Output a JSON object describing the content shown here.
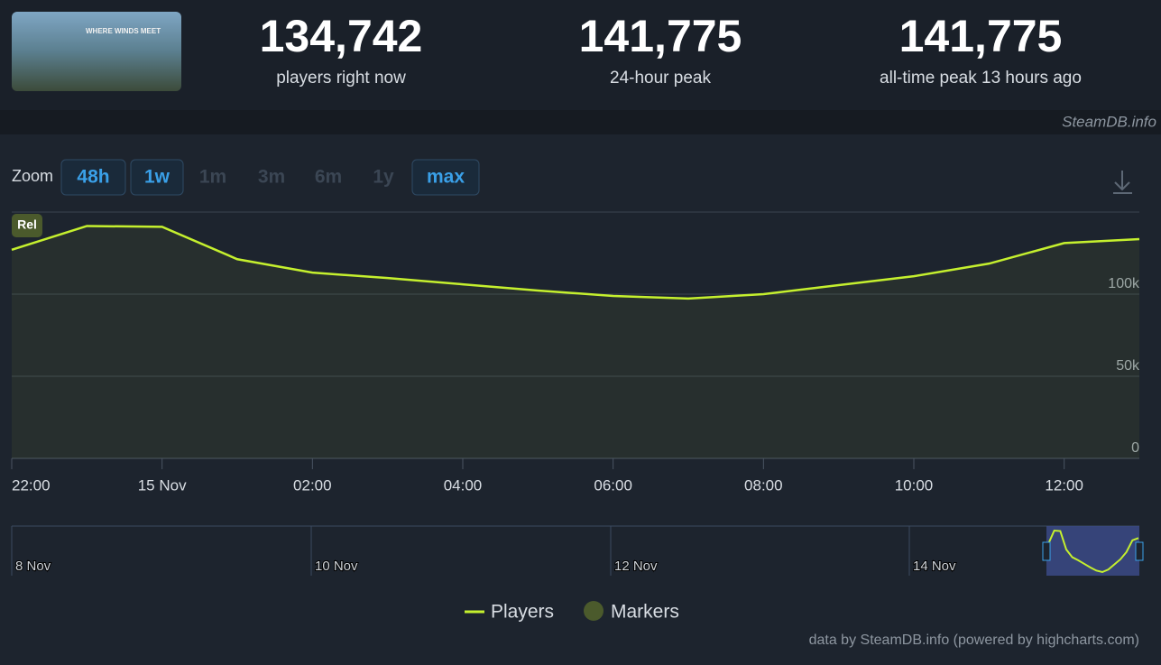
{
  "header": {
    "logo_text": "WHERE WINDS MEET",
    "stats": [
      {
        "value": "134,742",
        "label": "players right now"
      },
      {
        "value": "141,775",
        "label": "24-hour peak"
      },
      {
        "value": "141,775",
        "label": "all-time peak 13 hours ago"
      }
    ],
    "source": "SteamDB.info"
  },
  "zoom": {
    "label": "Zoom",
    "buttons": [
      "48h",
      "1w",
      "1m",
      "3m",
      "6m",
      "1y",
      "max"
    ],
    "active": [
      "48h",
      "1w",
      "max"
    ]
  },
  "chart_data": {
    "type": "line",
    "categories": [
      "22:00",
      null,
      "15 Nov",
      null,
      "02:00",
      null,
      "04:00",
      null,
      "06:00",
      null,
      "08:00",
      null,
      "10:00",
      null,
      "12:00",
      null
    ],
    "series": [
      {
        "name": "Players",
        "color": "#c5f02e",
        "values": [
          127000,
          141500,
          141000,
          121300,
          113100,
          109800,
          106000,
          102200,
          98900,
          97300,
          100000,
          105500,
          110900,
          118600,
          131100,
          133500
        ]
      }
    ],
    "markers": {
      "name": "Markers",
      "color": "#4b5a2c",
      "annotation": "Rel"
    },
    "ylim": [
      0,
      150000
    ],
    "yticks": [
      {
        "value": 0,
        "label": "0"
      },
      {
        "value": 50000,
        "label": "50k"
      },
      {
        "value": 100000,
        "label": "100k"
      }
    ],
    "grid": true,
    "navigator": {
      "labels": [
        "8 Nov",
        "10 Nov",
        "12 Nov",
        "14 Nov"
      ]
    },
    "credits": "data by SteamDB.info (powered by highcharts.com)"
  }
}
